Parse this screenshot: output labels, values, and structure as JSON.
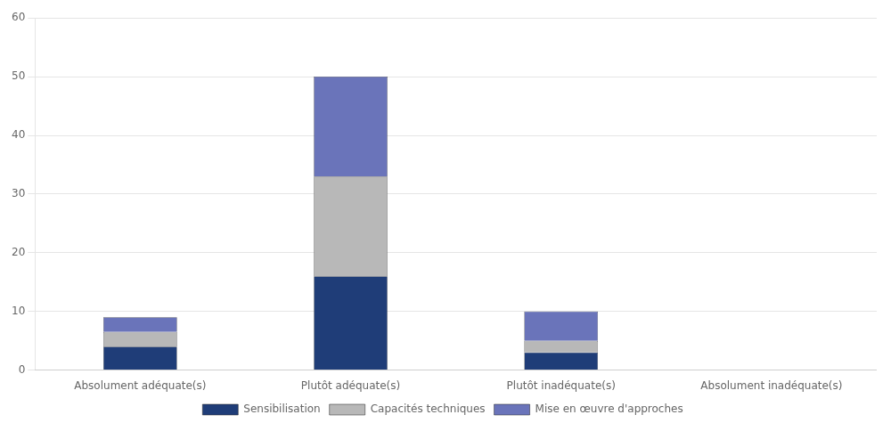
{
  "chart_data": {
    "type": "bar",
    "stacked": true,
    "categories": [
      "Absolument adéquate(s)",
      "Plutôt adéquate(s)",
      "Plutôt inadéquate(s)",
      "Absolument inadéquate(s)"
    ],
    "series": [
      {
        "name": "Sensibilisation",
        "color": "#1f3d78",
        "values": [
          4,
          16,
          3,
          0
        ]
      },
      {
        "name": "Capacités techniques",
        "color": "#b8b8b8",
        "values": [
          2.5,
          17,
          2,
          0
        ]
      },
      {
        "name": "Mise en œuvre d'approches",
        "color": "#6a74ba",
        "values": [
          2.5,
          17,
          5,
          0
        ]
      }
    ],
    "ylim": [
      0,
      60
    ],
    "yticks": [
      0,
      10,
      20,
      30,
      40,
      50,
      60
    ],
    "grid": true,
    "legend": "bottom"
  }
}
